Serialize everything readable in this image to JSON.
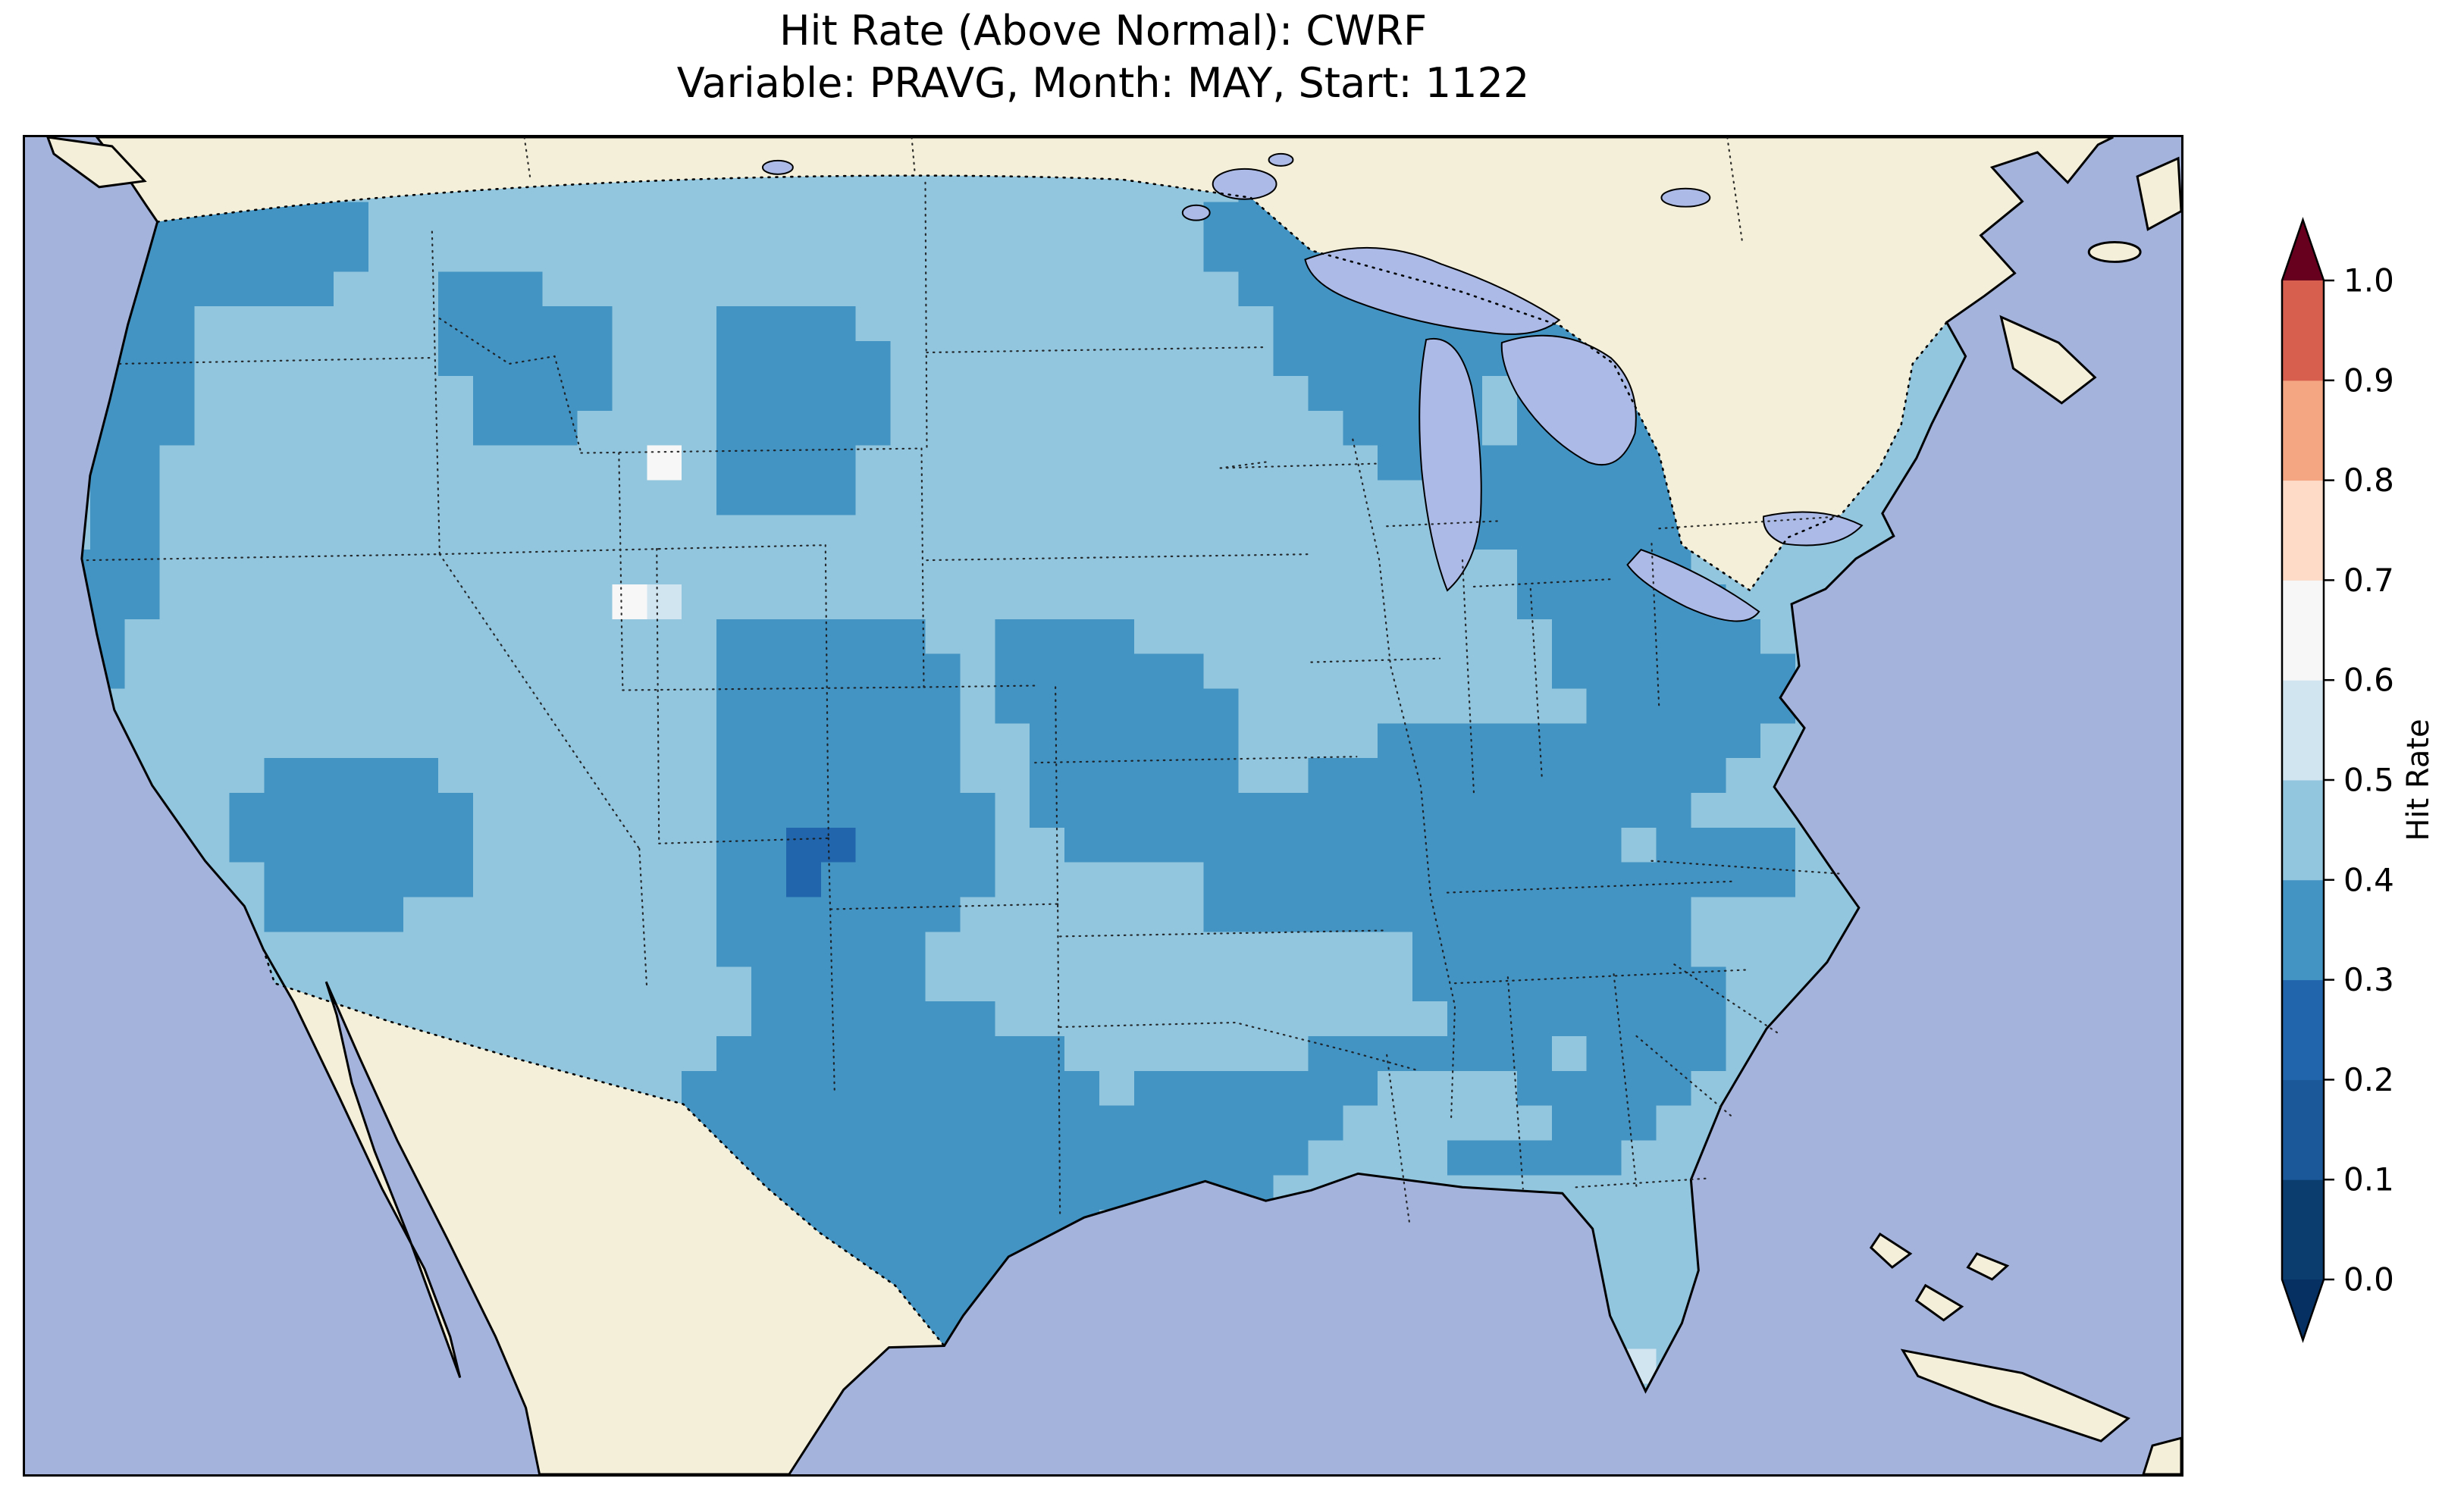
{
  "chart_data": {
    "type": "heatmap",
    "title": "Hit Rate (Above Normal): CWRF",
    "subtitle": "Variable: PRAVG, Month: MAY, Start: 1122",
    "region": "Contiguous United States",
    "legend_position": "right",
    "colorbar": {
      "label": "Hit Rate",
      "orientation": "vertical",
      "extend": "both",
      "range": [
        0.0,
        1.0
      ],
      "ticks": [
        "0.0",
        "0.1",
        "0.2",
        "0.3",
        "0.4",
        "0.5",
        "0.6",
        "0.7",
        "0.8",
        "0.9",
        "1.0"
      ],
      "bin_colors": [
        "#0b3d6f",
        "#1a5899",
        "#2166ac",
        "#4393c3",
        "#92c5de",
        "#d1e5f0",
        "#f7f7f7",
        "#fddbc7",
        "#f4a582",
        "#d6604d"
      ],
      "bin_colors_note": "bottom-to-top 0.0-1.0",
      "under_color": "#053061",
      "over_color": "#67001f"
    },
    "palette": {
      "1": "#2166ac",
      "2": "#4393c3",
      "3": "#92c5de",
      "4": "#d1e5f0",
      "5": "#f7f7f7"
    },
    "value_bins": {
      "1": "0.1-0.2",
      "2": "0.2-0.3",
      "3": "0.3-0.4",
      "4": "0.4-0.5",
      "5": "0.5-0.6"
    },
    "base_code": "3",
    "map": {
      "ocean_color": "#a3b3dc",
      "land_color": "#f4efd8",
      "lake_color": "#abbae6",
      "border_color": "#000000"
    },
    "grid": {
      "origin": [
        40,
        40
      ],
      "cell_size": 46,
      "cols": 56,
      "rows": 36,
      "default_code": "2",
      "runs": [
        [
          0,
          1,
          7
        ],
        [
          0,
          34,
          37
        ],
        [
          0,
          48,
          50
        ],
        [
          1,
          1,
          8
        ],
        [
          1,
          33,
          38
        ],
        [
          1,
          45,
          52
        ],
        [
          2,
          1,
          8
        ],
        [
          2,
          33,
          39
        ],
        [
          2,
          44,
          52
        ],
        [
          3,
          2,
          7
        ],
        [
          3,
          11,
          13
        ],
        [
          3,
          34,
          42
        ],
        [
          3,
          44,
          52
        ],
        [
          4,
          1,
          3
        ],
        [
          4,
          11,
          15
        ],
        [
          4,
          19,
          22
        ],
        [
          4,
          35,
          43
        ],
        [
          4,
          45,
          52
        ],
        [
          5,
          1,
          3
        ],
        [
          5,
          11,
          15
        ],
        [
          5,
          19,
          23
        ],
        [
          5,
          35,
          44
        ],
        [
          5,
          46,
          50
        ],
        [
          6,
          1,
          3
        ],
        [
          6,
          12,
          15
        ],
        [
          6,
          19,
          23
        ],
        [
          6,
          36,
          40
        ],
        [
          6,
          42,
          44
        ],
        [
          6,
          46,
          50
        ],
        [
          7,
          1,
          3
        ],
        [
          7,
          12,
          14
        ],
        [
          7,
          19,
          23
        ],
        [
          7,
          37,
          40
        ],
        [
          7,
          42,
          49
        ],
        [
          8,
          1,
          2
        ],
        [
          8,
          17,
          17,
          "5"
        ],
        [
          8,
          19,
          22
        ],
        [
          8,
          38,
          49
        ],
        [
          9,
          1,
          2
        ],
        [
          9,
          19,
          22
        ],
        [
          9,
          40,
          48
        ],
        [
          10,
          1,
          2
        ],
        [
          10,
          40,
          47
        ],
        [
          11,
          0,
          2
        ],
        [
          11,
          42,
          46
        ],
        [
          12,
          0,
          2
        ],
        [
          12,
          16,
          16,
          "5"
        ],
        [
          12,
          17,
          17,
          "4"
        ],
        [
          12,
          42,
          47
        ],
        [
          13,
          0,
          1
        ],
        [
          13,
          19,
          24
        ],
        [
          13,
          27,
          30
        ],
        [
          13,
          43,
          48
        ],
        [
          14,
          0,
          1
        ],
        [
          14,
          19,
          25
        ],
        [
          14,
          27,
          32
        ],
        [
          14,
          43,
          49
        ],
        [
          15,
          19,
          25
        ],
        [
          15,
          27,
          33
        ],
        [
          15,
          44,
          49
        ],
        [
          16,
          19,
          25
        ],
        [
          16,
          28,
          33
        ],
        [
          16,
          38,
          48
        ],
        [
          17,
          6,
          10
        ],
        [
          17,
          19,
          25
        ],
        [
          17,
          28,
          33
        ],
        [
          17,
          36,
          47
        ],
        [
          18,
          5,
          11
        ],
        [
          18,
          19,
          26
        ],
        [
          18,
          28,
          46
        ],
        [
          19,
          5,
          11
        ],
        [
          19,
          19,
          20
        ],
        [
          19,
          21,
          22,
          "1"
        ],
        [
          19,
          23,
          26
        ],
        [
          19,
          29,
          44
        ],
        [
          19,
          46,
          49
        ],
        [
          20,
          6,
          11
        ],
        [
          20,
          19,
          20
        ],
        [
          20,
          21,
          21,
          "1"
        ],
        [
          20,
          22,
          26
        ],
        [
          20,
          33,
          49
        ],
        [
          21,
          6,
          9
        ],
        [
          21,
          19,
          25
        ],
        [
          21,
          33,
          46
        ],
        [
          22,
          19,
          24
        ],
        [
          22,
          39,
          46
        ],
        [
          23,
          20,
          24
        ],
        [
          23,
          39,
          47
        ],
        [
          24,
          20,
          26
        ],
        [
          24,
          40,
          47
        ],
        [
          25,
          19,
          28
        ],
        [
          25,
          36,
          42
        ],
        [
          25,
          44,
          47
        ],
        [
          26,
          18,
          29
        ],
        [
          26,
          31,
          37
        ],
        [
          26,
          42,
          46
        ],
        [
          27,
          18,
          36
        ],
        [
          27,
          43,
          45
        ],
        [
          28,
          18,
          35
        ],
        [
          28,
          40,
          44
        ],
        [
          29,
          19,
          34
        ],
        [
          30,
          20,
          29
        ],
        [
          31,
          21,
          28
        ],
        [
          32,
          22,
          27
        ],
        [
          33,
          23,
          26
        ],
        [
          34,
          44,
          45,
          "4"
        ]
      ]
    }
  }
}
